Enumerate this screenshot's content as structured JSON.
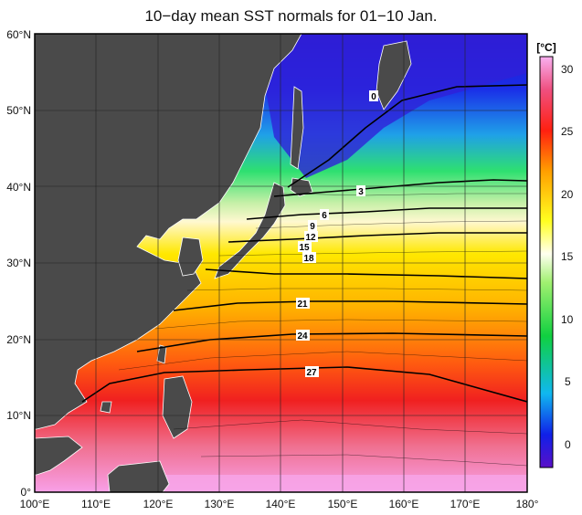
{
  "title": "10−day mean SST normals for 01−10 Jan.",
  "map": {
    "lat_ticks": [
      "60°N",
      "50°N",
      "40°N",
      "30°N",
      "20°N",
      "10°N",
      "0°"
    ],
    "lon_ticks": [
      "100°E",
      "110°E",
      "120°E",
      "130°E",
      "140°E",
      "150°E",
      "160°E",
      "170°E",
      "180°"
    ],
    "lat_range": [
      0,
      60
    ],
    "lon_range": [
      100,
      180
    ],
    "land_color": "#4a4a4a",
    "coast_color": "#ffffff",
    "contour_labels": [
      "0",
      "3",
      "6",
      "9",
      "12",
      "15",
      "18",
      "21",
      "24",
      "27"
    ]
  },
  "colorbar": {
    "unit": "[°C]",
    "ticks": [
      "30",
      "25",
      "20",
      "15",
      "10",
      "5",
      "0"
    ],
    "range": [
      -2,
      31
    ]
  }
}
